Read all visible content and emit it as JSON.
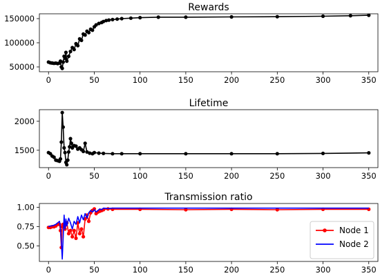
{
  "chart_data": [
    {
      "type": "line",
      "title": "Rewards",
      "xlabel": "",
      "ylabel": "",
      "xlim": [
        -10,
        360
      ],
      "ylim": [
        40000,
        160000
      ],
      "xticks": [
        0,
        50,
        100,
        150,
        200,
        250,
        300,
        350
      ],
      "yticks": [
        50000,
        100000,
        150000
      ],
      "grid": false,
      "series": [
        {
          "color": "#000000",
          "marker": "circle",
          "points": [
            [
              0,
              60000
            ],
            [
              2,
              58500
            ],
            [
              4,
              58000
            ],
            [
              6,
              57500
            ],
            [
              8,
              57800
            ],
            [
              10,
              57000
            ],
            [
              12,
              58000
            ],
            [
              13,
              62000
            ],
            [
              14,
              50000
            ],
            [
              15,
              47000
            ],
            [
              16,
              60000
            ],
            [
              17,
              72000
            ],
            [
              18,
              68000
            ],
            [
              19,
              80000
            ],
            [
              20,
              62000
            ],
            [
              22,
              72000
            ],
            [
              24,
              82000
            ],
            [
              26,
              90000
            ],
            [
              28,
              86000
            ],
            [
              30,
              98000
            ],
            [
              32,
              94000
            ],
            [
              34,
              108000
            ],
            [
              36,
              105000
            ],
            [
              38,
              118000
            ],
            [
              40,
              116000
            ],
            [
              42,
              124000
            ],
            [
              44,
              121000
            ],
            [
              46,
              128000
            ],
            [
              48,
              126000
            ],
            [
              50,
              133000
            ],
            [
              52,
              137000
            ],
            [
              55,
              140000
            ],
            [
              58,
              142000
            ],
            [
              60,
              144000
            ],
            [
              63,
              146000
            ],
            [
              66,
              147000
            ],
            [
              70,
              148000
            ],
            [
              75,
              149000
            ],
            [
              80,
              150000
            ],
            [
              90,
              151000
            ],
            [
              100,
              152000
            ],
            [
              120,
              153000
            ],
            [
              150,
              153000
            ],
            [
              200,
              153500
            ],
            [
              250,
              154000
            ],
            [
              300,
              155000
            ],
            [
              330,
              156000
            ],
            [
              350,
              157000
            ]
          ]
        }
      ]
    },
    {
      "type": "line",
      "title": "Lifetime",
      "xlabel": "",
      "ylabel": "",
      "xlim": [
        -10,
        360
      ],
      "ylim": [
        1200,
        2200
      ],
      "xticks": [
        0,
        50,
        100,
        150,
        200,
        250,
        300,
        350
      ],
      "yticks": [
        1500,
        2000
      ],
      "grid": false,
      "series": [
        {
          "color": "#000000",
          "marker": "circle",
          "points": [
            [
              0,
              1460
            ],
            [
              2,
              1440
            ],
            [
              4,
              1400
            ],
            [
              6,
              1380
            ],
            [
              8,
              1330
            ],
            [
              10,
              1320
            ],
            [
              12,
              1310
            ],
            [
              13,
              1350
            ],
            [
              14,
              1640
            ],
            [
              15,
              2150
            ],
            [
              16,
              1900
            ],
            [
              17,
              1540
            ],
            [
              18,
              1460
            ],
            [
              19,
              1290
            ],
            [
              20,
              1250
            ],
            [
              21,
              1330
            ],
            [
              22,
              1470
            ],
            [
              23,
              1560
            ],
            [
              24,
              1700
            ],
            [
              25,
              1620
            ],
            [
              26,
              1540
            ],
            [
              28,
              1580
            ],
            [
              30,
              1570
            ],
            [
              32,
              1520
            ],
            [
              34,
              1540
            ],
            [
              36,
              1510
            ],
            [
              38,
              1480
            ],
            [
              40,
              1620
            ],
            [
              42,
              1470
            ],
            [
              45,
              1450
            ],
            [
              48,
              1440
            ],
            [
              50,
              1460
            ],
            [
              55,
              1450
            ],
            [
              60,
              1445
            ],
            [
              70,
              1440
            ],
            [
              80,
              1440
            ],
            [
              100,
              1440
            ],
            [
              150,
              1440
            ],
            [
              200,
              1440
            ],
            [
              250,
              1440
            ],
            [
              300,
              1445
            ],
            [
              350,
              1455
            ]
          ]
        }
      ]
    },
    {
      "type": "line",
      "title": "Transmission ratio",
      "xlabel": "",
      "ylabel": "",
      "xlim": [
        -10,
        360
      ],
      "ylim": [
        0.3,
        1.05
      ],
      "xticks": [
        0,
        50,
        100,
        150,
        200,
        250,
        300,
        350
      ],
      "yticks": [
        0.5,
        0.75,
        1.0
      ],
      "ytick_labels": [
        "0.50",
        "0.75",
        "1.00"
      ],
      "grid": false,
      "legend": {
        "position": "bottom-right"
      },
      "series": [
        {
          "name": "Node 1",
          "color": "#ff0000",
          "marker": "circle",
          "points": [
            [
              0,
              0.74
            ],
            [
              2,
              0.74
            ],
            [
              4,
              0.75
            ],
            [
              6,
              0.75
            ],
            [
              8,
              0.76
            ],
            [
              10,
              0.78
            ],
            [
              12,
              0.78
            ],
            [
              13,
              0.7
            ],
            [
              14,
              0.48
            ],
            [
              15,
              0.75
            ],
            [
              16,
              0.78
            ],
            [
              18,
              0.72
            ],
            [
              20,
              0.8
            ],
            [
              22,
              0.66
            ],
            [
              24,
              0.7
            ],
            [
              26,
              0.62
            ],
            [
              28,
              0.7
            ],
            [
              30,
              0.6
            ],
            [
              32,
              0.8
            ],
            [
              34,
              0.66
            ],
            [
              36,
              0.72
            ],
            [
              38,
              0.62
            ],
            [
              40,
              0.85
            ],
            [
              42,
              0.9
            ],
            [
              44,
              0.82
            ],
            [
              46,
              0.93
            ],
            [
              48,
              0.96
            ],
            [
              50,
              0.98
            ],
            [
              52,
              0.92
            ],
            [
              54,
              0.94
            ],
            [
              56,
              0.95
            ],
            [
              58,
              0.96
            ],
            [
              60,
              0.97
            ],
            [
              65,
              0.98
            ],
            [
              70,
              0.975
            ],
            [
              100,
              0.975
            ],
            [
              150,
              0.97
            ],
            [
              200,
              0.975
            ],
            [
              250,
              0.97
            ],
            [
              300,
              0.975
            ],
            [
              350,
              0.975
            ]
          ]
        },
        {
          "name": "Node 2",
          "color": "#0000ff",
          "marker": "none",
          "points": [
            [
              0,
              0.75
            ],
            [
              2,
              0.76
            ],
            [
              4,
              0.76
            ],
            [
              6,
              0.77
            ],
            [
              8,
              0.78
            ],
            [
              10,
              0.8
            ],
            [
              12,
              0.82
            ],
            [
              13,
              0.75
            ],
            [
              14,
              0.55
            ],
            [
              15,
              0.33
            ],
            [
              16,
              0.6
            ],
            [
              17,
              0.9
            ],
            [
              18,
              0.72
            ],
            [
              19,
              0.85
            ],
            [
              20,
              0.76
            ],
            [
              22,
              0.86
            ],
            [
              24,
              0.8
            ],
            [
              26,
              0.72
            ],
            [
              28,
              0.82
            ],
            [
              30,
              0.78
            ],
            [
              32,
              0.88
            ],
            [
              34,
              0.8
            ],
            [
              36,
              0.9
            ],
            [
              38,
              0.84
            ],
            [
              40,
              0.92
            ],
            [
              42,
              0.86
            ],
            [
              44,
              0.93
            ],
            [
              46,
              0.96
            ],
            [
              48,
              0.94
            ],
            [
              50,
              0.97
            ],
            [
              52,
              0.94
            ],
            [
              54,
              0.96
            ],
            [
              56,
              0.98
            ],
            [
              58,
              0.97
            ],
            [
              60,
              0.99
            ],
            [
              65,
              0.985
            ],
            [
              70,
              0.99
            ],
            [
              100,
              0.99
            ],
            [
              150,
              0.99
            ],
            [
              200,
              0.99
            ],
            [
              250,
              0.99
            ],
            [
              300,
              0.99
            ],
            [
              350,
              0.99
            ]
          ]
        }
      ]
    }
  ]
}
